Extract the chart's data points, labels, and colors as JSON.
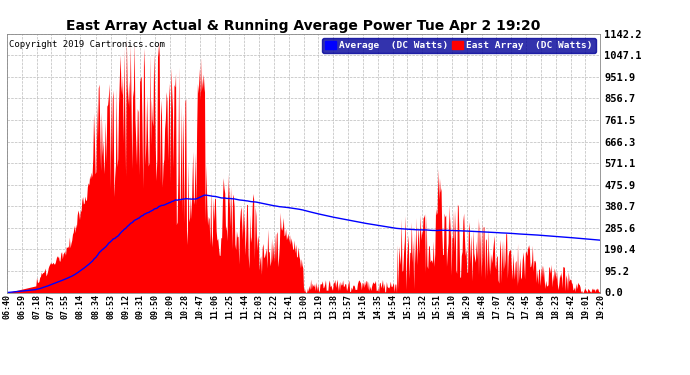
{
  "title": "East Array Actual & Running Average Power Tue Apr 2 19:20",
  "copyright": "Copyright 2019 Cartronics.com",
  "legend_labels": [
    "Average  (DC Watts)",
    "East Array  (DC Watts)"
  ],
  "legend_colors": [
    "#0000ff",
    "#ff0000"
  ],
  "background_color": "#ffffff",
  "plot_bg_color": "#ffffff",
  "grid_color": "#bbbbbb",
  "ytick_labels": [
    "0.0",
    "95.2",
    "190.4",
    "285.6",
    "380.7",
    "475.9",
    "571.1",
    "666.3",
    "761.5",
    "856.7",
    "951.9",
    "1047.1",
    "1142.2"
  ],
  "ytick_values": [
    0.0,
    95.2,
    190.4,
    285.6,
    380.7,
    475.9,
    571.1,
    666.3,
    761.5,
    856.7,
    951.9,
    1047.1,
    1142.2
  ],
  "ylim": [
    0.0,
    1142.2
  ],
  "fill_color": "#ff0000",
  "line_color": "#0000ff",
  "xtick_times": [
    "06:40",
    "06:59",
    "07:18",
    "07:37",
    "07:55",
    "08:14",
    "08:34",
    "08:53",
    "09:12",
    "09:31",
    "09:50",
    "10:09",
    "10:28",
    "10:47",
    "11:06",
    "11:25",
    "11:44",
    "12:03",
    "12:22",
    "12:41",
    "13:00",
    "13:19",
    "13:38",
    "13:57",
    "14:16",
    "14:35",
    "14:54",
    "15:13",
    "15:32",
    "15:51",
    "16:10",
    "16:29",
    "16:48",
    "17:07",
    "17:26",
    "17:45",
    "18:04",
    "18:23",
    "18:42",
    "19:01",
    "19:20"
  ]
}
